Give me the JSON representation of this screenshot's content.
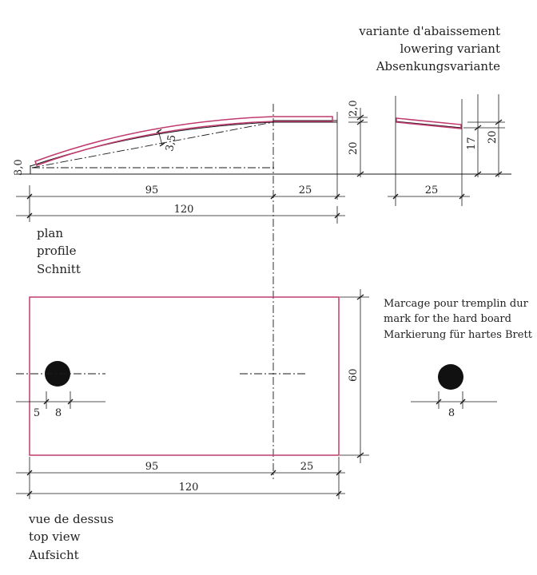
{
  "variant": {
    "fr": "variante d'abaissement",
    "en": "lowering variant",
    "de": "Absenkungsvariante"
  },
  "profile": {
    "labels": [
      "plan",
      "profile",
      "Schnitt"
    ],
    "dims": {
      "left_height": "3,0",
      "thickness": "2,0",
      "curve_offset": "3,5",
      "rise": "20",
      "len_95": "95",
      "len_25": "25",
      "len_120": "120"
    }
  },
  "variant_profile": {
    "dims": {
      "len_25": "25",
      "h_17": "17",
      "h_20": "20"
    }
  },
  "marking": {
    "fr": "Marcage pour tremplin dur",
    "en": "mark for the hard board",
    "de": "Markierung für hartes Brett",
    "dim_8": "8"
  },
  "top": {
    "labels": [
      "vue de dessus",
      "top view",
      "Aufsicht"
    ],
    "dims": {
      "width_60": "60",
      "hole_5": "5",
      "hole_8": "8",
      "len_95": "95",
      "len_25": "25",
      "len_120": "120"
    }
  },
  "colors": {
    "outline": "#c03a6e",
    "lines": "#1a1a1a"
  }
}
